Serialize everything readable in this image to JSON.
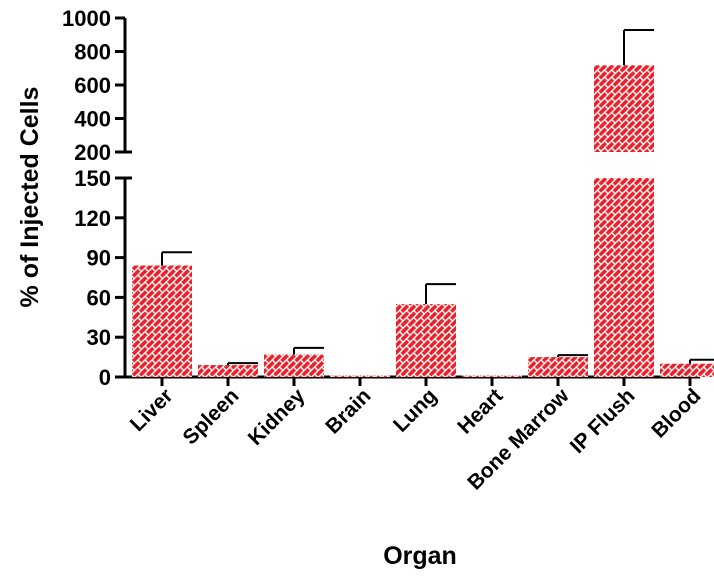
{
  "chart_data": {
    "type": "bar",
    "title": "",
    "xlabel": "Organ",
    "ylabel": "% of Injected Cells",
    "categories": [
      "Liver",
      "Spleen",
      "Kidney",
      "Brain",
      "Lung",
      "Heart",
      "Bone Marrow",
      "IP Flush",
      "Blood"
    ],
    "values": [
      84,
      9,
      17,
      0.5,
      55,
      0.5,
      15,
      718,
      10
    ],
    "errors": [
      10,
      1.5,
      5,
      0,
      15,
      0,
      1.5,
      210,
      3
    ],
    "y_axis_broken": true,
    "y_segments": [
      {
        "range": [
          0,
          150
        ],
        "ticks": [
          0,
          30,
          60,
          90,
          120,
          150
        ]
      },
      {
        "range": [
          200,
          1000
        ],
        "ticks": [
          200,
          400,
          600,
          800,
          1000
        ]
      }
    ],
    "bar_color": "#e8202a",
    "bar_pattern": "white-brick-hatch",
    "grid": false,
    "legend": "none"
  }
}
